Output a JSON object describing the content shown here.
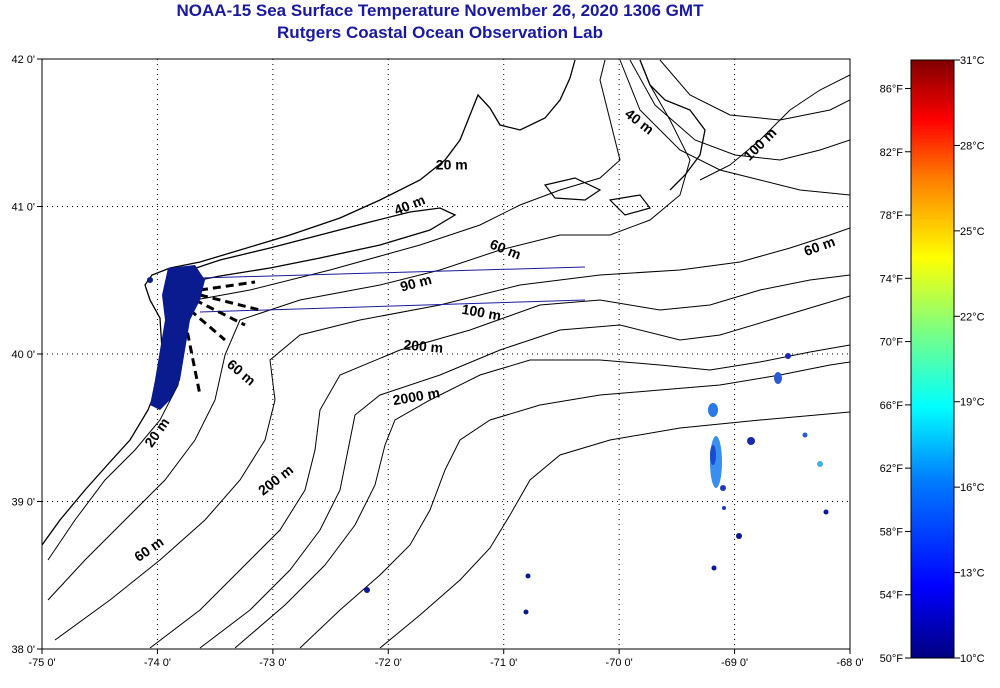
{
  "title": "NOAA-15 Sea Surface Temperature November 26, 2020 1306 GMT",
  "subtitle": "Rutgers Coastal Ocean Observation Lab",
  "map": {
    "lon_range": [
      -75,
      -68
    ],
    "lat_range": [
      38,
      42
    ],
    "lon_ticks": [
      "-75 0'",
      "-74 0'",
      "-73 0'",
      "-72 0'",
      "-71 0'",
      "-70 0'",
      "-69 0'",
      "-68 0'"
    ],
    "lat_ticks": [
      "38 0'",
      "39 0'",
      "40 0'",
      "41 0'",
      "42 0'"
    ],
    "contour_labels": [
      {
        "text": "20 m",
        "lon": -71.45,
        "lat": 41.25,
        "angle": 0
      },
      {
        "text": "40 m",
        "lon": -71.8,
        "lat": 40.98,
        "angle": -22
      },
      {
        "text": "40 m",
        "lon": -69.85,
        "lat": 41.55,
        "angle": 38
      },
      {
        "text": "100 m",
        "lon": -68.75,
        "lat": 41.4,
        "angle": -45
      },
      {
        "text": "60 m",
        "lon": -71.0,
        "lat": 40.68,
        "angle": 22
      },
      {
        "text": "60 m",
        "lon": -68.25,
        "lat": 40.7,
        "angle": -20
      },
      {
        "text": "90 m",
        "lon": -71.75,
        "lat": 40.45,
        "angle": -15
      },
      {
        "text": "100 m",
        "lon": -71.2,
        "lat": 40.25,
        "angle": 10
      },
      {
        "text": "200 m",
        "lon": -71.7,
        "lat": 40.02,
        "angle": 5
      },
      {
        "text": "2000 m",
        "lon": -71.75,
        "lat": 39.68,
        "angle": -10
      },
      {
        "text": "60 m",
        "lon": -73.3,
        "lat": 39.85,
        "angle": 40
      },
      {
        "text": "20 m",
        "lon": -73.97,
        "lat": 39.45,
        "angle": -55
      },
      {
        "text": "200 m",
        "lon": -72.95,
        "lat": 39.12,
        "angle": -38
      },
      {
        "text": "60 m",
        "lon": -74.05,
        "lat": 38.65,
        "angle": -35
      }
    ]
  },
  "colorbar": {
    "f_labels": [
      "50°F",
      "54°F",
      "58°F",
      "62°F",
      "66°F",
      "70°F",
      "74°F",
      "78°F",
      "82°F",
      "86°F"
    ],
    "c_labels": [
      "10°C",
      "13°C",
      "16°C",
      "19°C",
      "22°C",
      "25°C",
      "28°C",
      "31°C"
    ],
    "f_range": [
      50,
      87.8
    ],
    "colors": [
      "#00007f",
      "#0000ff",
      "#007fff",
      "#00ffff",
      "#7fff7f",
      "#ffff00",
      "#ff7f00",
      "#ff0000",
      "#7f0000"
    ]
  },
  "colors": {
    "title": "#1a1aa0",
    "land_edge": "#000000",
    "cold_patch": "#0a1a8f"
  }
}
